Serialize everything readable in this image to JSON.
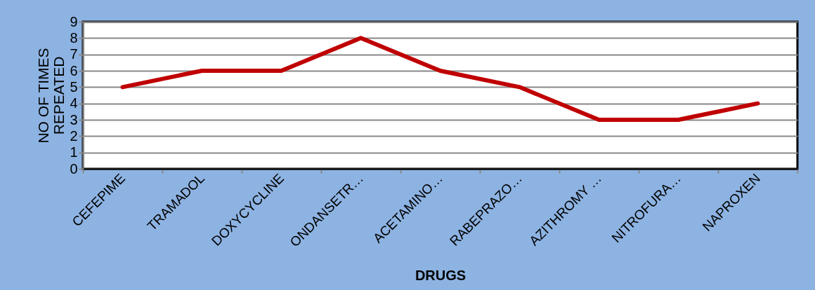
{
  "chart_data": {
    "type": "line",
    "xlabel": "DRUGS",
    "ylabel": "NO OF TIMES\nREPEATED",
    "categories": [
      "CEFEPIME",
      "TRAMADOL",
      "DOXYCYCLINE",
      "ONDANSETR…",
      "ACETAMINO…",
      "RABEPRAZO…",
      "AZITHROMY …",
      "NITROFURA…",
      "NAPROXEN"
    ],
    "series": [
      {
        "color": "#c00000",
        "values": [
          5,
          6,
          6,
          8,
          6,
          5,
          3,
          3,
          4
        ]
      }
    ],
    "ylim": [
      0,
      9
    ],
    "yticks": [
      0,
      1,
      2,
      3,
      4,
      5,
      6,
      7,
      8,
      9
    ],
    "grid": "y",
    "legend": false,
    "marker": "none",
    "line_style": "solid"
  }
}
